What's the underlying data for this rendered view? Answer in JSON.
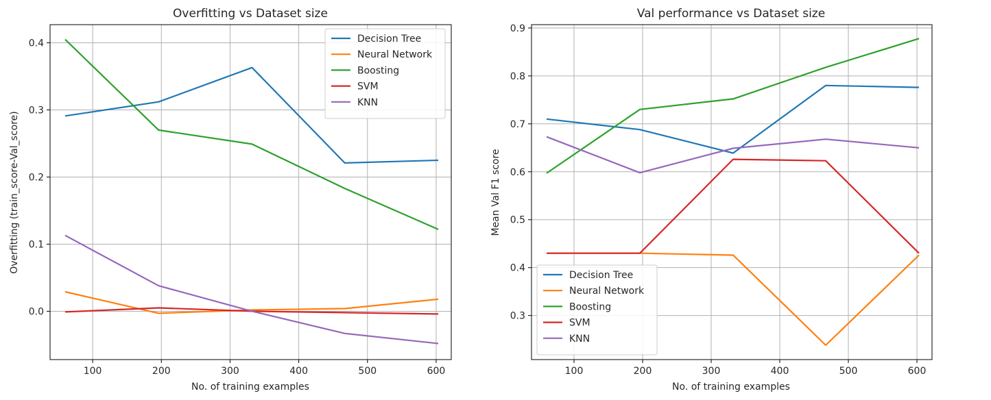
{
  "chart_data": [
    {
      "type": "line",
      "title": "Overfitting vs Dataset size",
      "xlabel": "No. of training examples",
      "ylabel": "Overfitting (train_score-Val_score)",
      "xlim": [
        38,
        622
      ],
      "ylim": [
        -0.072,
        0.427
      ],
      "xticks": [
        100,
        200,
        300,
        400,
        500,
        600
      ],
      "yticks": [
        0.0,
        0.1,
        0.2,
        0.3,
        0.4
      ],
      "ytick_labels": [
        "0.0",
        "0.1",
        "0.2",
        "0.3",
        "0.4"
      ],
      "grid": true,
      "legend_position": "upper right",
      "x": [
        60,
        196,
        332,
        467,
        603
      ],
      "series": [
        {
          "name": "Decision Tree",
          "color": "#1f77b4",
          "values": [
            0.291,
            0.312,
            0.363,
            0.221,
            0.225
          ]
        },
        {
          "name": "Neural Network",
          "color": "#ff7f0e",
          "values": [
            0.029,
            -0.003,
            0.002,
            0.004,
            0.018
          ]
        },
        {
          "name": "Boosting",
          "color": "#2ca02c",
          "values": [
            0.405,
            0.27,
            0.249,
            0.183,
            0.122
          ]
        },
        {
          "name": "SVM",
          "color": "#d62728",
          "values": [
            -0.001,
            0.005,
            0.0,
            -0.002,
            -0.004
          ]
        },
        {
          "name": "KNN",
          "color": "#9467bd",
          "values": [
            0.113,
            0.038,
            0.0,
            -0.033,
            -0.048
          ]
        }
      ]
    },
    {
      "type": "line",
      "title": "Val performance vs Dataset size",
      "xlabel": "No. of training examples",
      "ylabel": "Mean Val F1 score",
      "xlim": [
        38,
        622
      ],
      "ylim": [
        0.208,
        0.907
      ],
      "xticks": [
        100,
        200,
        300,
        400,
        500,
        600
      ],
      "yticks": [
        0.3,
        0.4,
        0.5,
        0.6,
        0.7,
        0.8,
        0.9
      ],
      "ytick_labels": [
        "0.3",
        "0.4",
        "0.5",
        "0.6",
        "0.7",
        "0.8",
        "0.9"
      ],
      "grid": true,
      "legend_position": "lower left",
      "x": [
        60,
        196,
        332,
        467,
        603
      ],
      "series": [
        {
          "name": "Decision Tree",
          "color": "#1f77b4",
          "values": [
            0.71,
            0.688,
            0.639,
            0.78,
            0.776
          ]
        },
        {
          "name": "Neural Network",
          "color": "#ff7f0e",
          "values": [
            0.43,
            0.43,
            0.426,
            0.238,
            0.426
          ]
        },
        {
          "name": "Boosting",
          "color": "#2ca02c",
          "values": [
            0.597,
            0.73,
            0.752,
            0.818,
            0.878
          ]
        },
        {
          "name": "SVM",
          "color": "#d62728",
          "values": [
            0.43,
            0.43,
            0.626,
            0.623,
            0.43
          ]
        },
        {
          "name": "KNN",
          "color": "#9467bd",
          "values": [
            0.673,
            0.598,
            0.649,
            0.668,
            0.65
          ]
        }
      ]
    }
  ]
}
